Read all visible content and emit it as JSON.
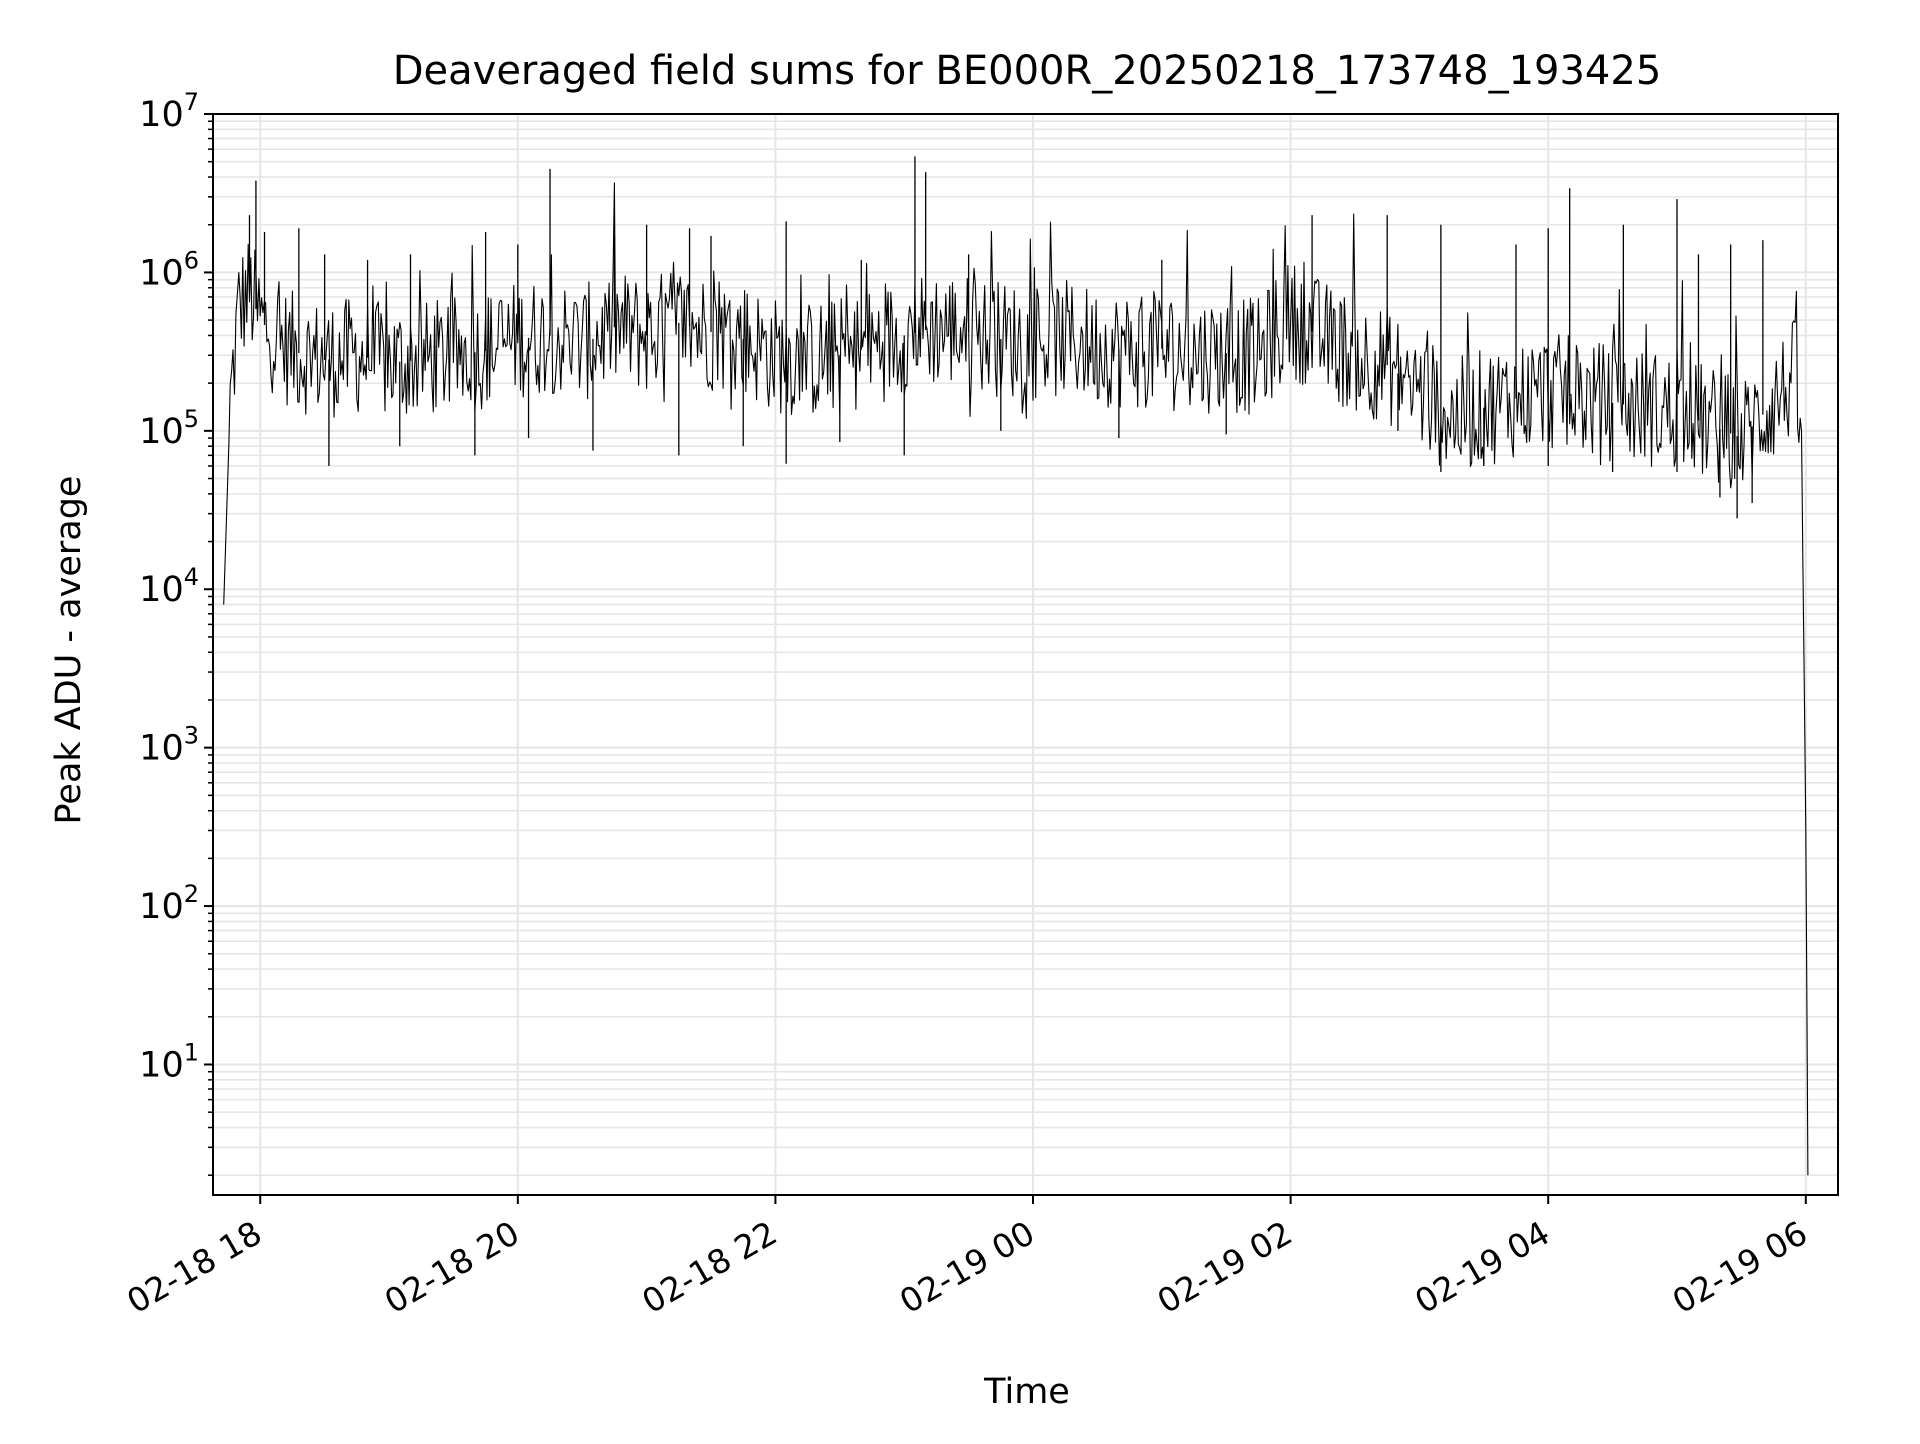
{
  "chart_data": {
    "type": "line",
    "title": "Deaveraged field sums for BE000R_20250218_173748_193425",
    "xlabel": "Time",
    "ylabel": "Peak ADU - average",
    "yscale": "log",
    "ylim": [
      1.5,
      10000000
    ],
    "xlim": [
      "2025-02-18 17:38",
      "2025-02-19 06:15"
    ],
    "xticks": [
      "2025-02-18 18:00",
      "2025-02-18 20:00",
      "2025-02-18 22:00",
      "2025-02-19 00:00",
      "2025-02-19 02:00",
      "2025-02-19 04:00",
      "2025-02-19 06:00"
    ],
    "xtick_labels": [
      "02-18 18",
      "02-18 20",
      "02-18 22",
      "02-19 00",
      "02-19 02",
      "02-19 04",
      "02-19 06"
    ],
    "yticks": [
      10,
      100,
      1000,
      10000,
      100000,
      1000000,
      10000000
    ],
    "ytick_labels": [
      {
        "base": "10",
        "exp": "1"
      },
      {
        "base": "10",
        "exp": "2"
      },
      {
        "base": "10",
        "exp": "3"
      },
      {
        "base": "10",
        "exp": "4"
      },
      {
        "base": "10",
        "exp": "5"
      },
      {
        "base": "10",
        "exp": "6"
      },
      {
        "base": "10",
        "exp": "7"
      }
    ],
    "grid": true,
    "line_color": "#000000",
    "grid_color": "#e6e6e6",
    "series": [
      {
        "x": [
          "2025-02-18 17:43",
          "2025-02-18 17:46",
          "2025-02-18 17:50",
          "2025-02-18 17:55",
          "2025-02-18 18:00",
          "2025-02-18 18:10",
          "2025-02-18 18:20",
          "2025-02-18 18:30",
          "2025-02-18 18:45",
          "2025-02-18 19:00",
          "2025-02-18 19:15",
          "2025-02-18 19:30",
          "2025-02-18 19:45",
          "2025-02-18 20:00",
          "2025-02-18 20:15",
          "2025-02-18 20:30",
          "2025-02-18 20:45",
          "2025-02-18 21:00",
          "2025-02-18 21:15",
          "2025-02-18 21:30",
          "2025-02-18 21:45",
          "2025-02-18 22:00",
          "2025-02-18 22:15",
          "2025-02-18 22:30",
          "2025-02-18 22:45",
          "2025-02-18 23:00",
          "2025-02-18 23:15",
          "2025-02-18 23:30",
          "2025-02-18 23:45",
          "2025-02-19 00:00",
          "2025-02-19 00:15",
          "2025-02-19 00:30",
          "2025-02-19 00:45",
          "2025-02-19 01:00",
          "2025-02-19 01:15",
          "2025-02-19 01:30",
          "2025-02-19 01:45",
          "2025-02-19 02:00",
          "2025-02-19 02:15",
          "2025-02-19 02:30",
          "2025-02-19 02:45",
          "2025-02-19 03:00",
          "2025-02-19 03:15",
          "2025-02-19 03:30",
          "2025-02-19 03:45",
          "2025-02-19 04:00",
          "2025-02-19 04:15",
          "2025-02-19 04:30",
          "2025-02-19 04:45",
          "2025-02-19 05:00",
          "2025-02-19 05:15",
          "2025-02-19 05:30",
          "2025-02-19 05:45",
          "2025-02-19 05:55",
          "2025-02-19 05:58",
          "2025-02-19 06:00",
          "2025-02-19 06:01"
        ],
        "y": [
          8000,
          150000,
          600000,
          750000,
          500000,
          350000,
          300000,
          280000,
          300000,
          270000,
          280000,
          300000,
          320000,
          380000,
          400000,
          350000,
          450000,
          400000,
          480000,
          420000,
          380000,
          300000,
          280000,
          300000,
          340000,
          400000,
          450000,
          420000,
          380000,
          360000,
          380000,
          340000,
          320000,
          330000,
          300000,
          310000,
          290000,
          520000,
          380000,
          300000,
          260000,
          180000,
          120000,
          140000,
          160000,
          180000,
          160000,
          150000,
          140000,
          130000,
          110000,
          90000,
          150000,
          220000,
          100000,
          300,
          2
        ]
      }
    ],
    "spikes": {
      "x": [
        "2025-02-18 17:55",
        "2025-02-18 17:58",
        "2025-02-18 18:02",
        "2025-02-18 18:18",
        "2025-02-18 18:30",
        "2025-02-18 18:50",
        "2025-02-18 19:10",
        "2025-02-18 19:45",
        "2025-02-18 20:00",
        "2025-02-18 20:15",
        "2025-02-18 20:45",
        "2025-02-18 21:00",
        "2025-02-18 21:20",
        "2025-02-18 21:30",
        "2025-02-18 22:05",
        "2025-02-18 22:40",
        "2025-02-18 23:05",
        "2025-02-18 23:10",
        "2025-02-18 23:30",
        "2025-02-19 01:00",
        "2025-02-19 02:10",
        "2025-02-19 02:45",
        "2025-02-19 03:10",
        "2025-02-19 03:45",
        "2025-02-19 04:00",
        "2025-02-19 04:10",
        "2025-02-19 04:35",
        "2025-02-19 05:00",
        "2025-02-19 05:10",
        "2025-02-19 05:25",
        "2025-02-19 05:40"
      ],
      "y": [
        2300000,
        3800000,
        1800000,
        1900000,
        1300000,
        1200000,
        1300000,
        1800000,
        1500000,
        4500000,
        1700000,
        2000000,
        1900000,
        1700000,
        2100000,
        1200000,
        5400000,
        4300000,
        1300000,
        1200000,
        2300000,
        2300000,
        2000000,
        1500000,
        1900000,
        3400000,
        2000000,
        2900000,
        1300000,
        1500000,
        1600000
      ]
    },
    "dips": {
      "x": [
        "2025-02-18 18:32",
        "2025-02-18 19:05",
        "2025-02-18 19:40",
        "2025-02-18 20:05",
        "2025-02-18 20:35",
        "2025-02-18 21:15",
        "2025-02-18 21:45",
        "2025-02-18 22:05",
        "2025-02-18 22:30",
        "2025-02-18 23:00",
        "2025-02-18 23:45",
        "2025-02-19 00:40",
        "2025-02-19 01:30",
        "2025-02-19 02:50",
        "2025-02-19 03:10",
        "2025-02-19 03:30",
        "2025-02-19 04:00",
        "2025-02-19 04:30",
        "2025-02-19 05:00",
        "2025-02-19 05:20",
        "2025-02-19 05:28",
        "2025-02-19 05:35"
      ],
      "y": [
        60000,
        80000,
        70000,
        90000,
        75000,
        70000,
        80000,
        62000,
        85000,
        70000,
        100000,
        90000,
        95000,
        100000,
        55000,
        60000,
        60000,
        55000,
        55000,
        38000,
        28000,
        35000
      ]
    }
  }
}
